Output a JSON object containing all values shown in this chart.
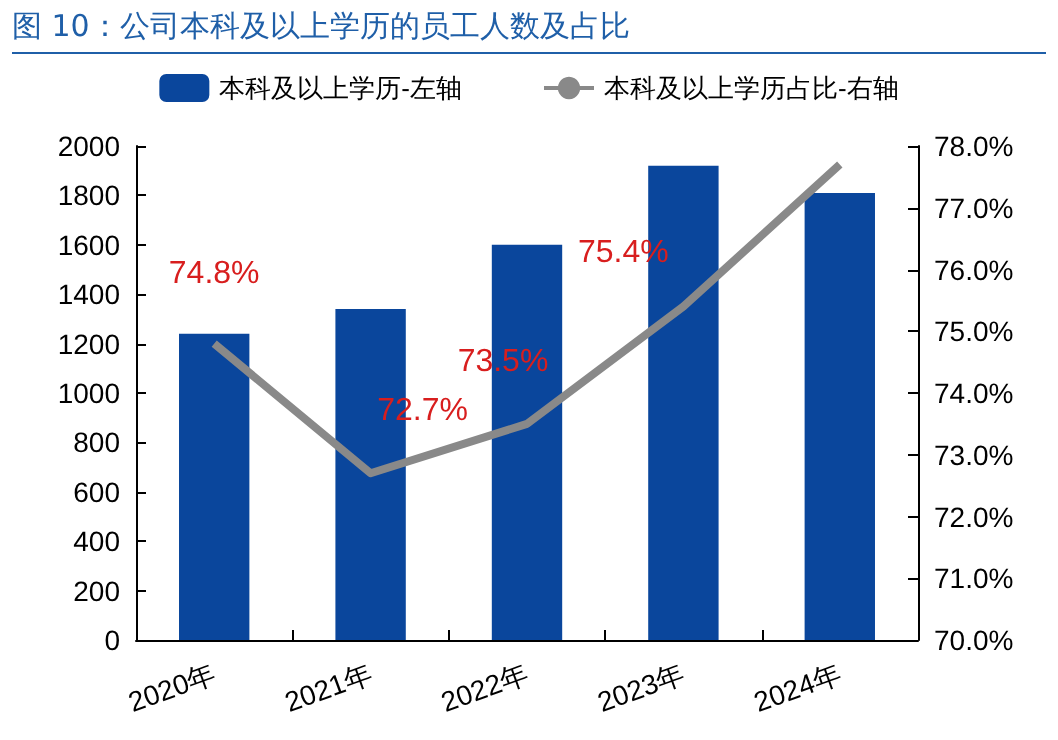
{
  "chart_data": {
    "type": "bar",
    "title": "图 10：公司本科及以上学历的员工人数及占比",
    "categories": [
      "2020年",
      "2021年",
      "2022年",
      "2023年",
      "2024年"
    ],
    "series": [
      {
        "name": "本科及以上学历-左轴",
        "color": "#0a469c",
        "values": [
          1240,
          1340,
          1600,
          1920,
          1810
        ]
      },
      {
        "name": "本科及以上学历占比-右轴",
        "type": "line",
        "axis": "y2",
        "color": "#898989",
        "values": [
          74.8,
          72.7,
          73.5,
          75.4,
          77.7
        ],
        "value_labels": [
          "74.8%",
          "72.7%",
          "73.5%",
          "75.4%",
          null
        ]
      }
    ],
    "ylim": [
      0,
      2000
    ],
    "yticks": [
      0,
      200,
      400,
      600,
      800,
      1000,
      1200,
      1400,
      1600,
      1800,
      2000
    ],
    "y2lim": [
      70,
      78
    ],
    "y2ticks": [
      {
        "value": 70,
        "label": "70.0%"
      },
      {
        "value": 71,
        "label": "71.0%"
      },
      {
        "value": 72,
        "label": "72.0%"
      },
      {
        "value": 73,
        "label": "73.0%"
      },
      {
        "value": 74,
        "label": "74.0%"
      },
      {
        "value": 75,
        "label": "75.0%"
      },
      {
        "value": 76,
        "label": "76.0%"
      },
      {
        "value": 77,
        "label": "77.0%"
      },
      {
        "value": 78,
        "label": "78.0%"
      }
    ],
    "grid": false,
    "legend": "top",
    "marker": "none"
  }
}
